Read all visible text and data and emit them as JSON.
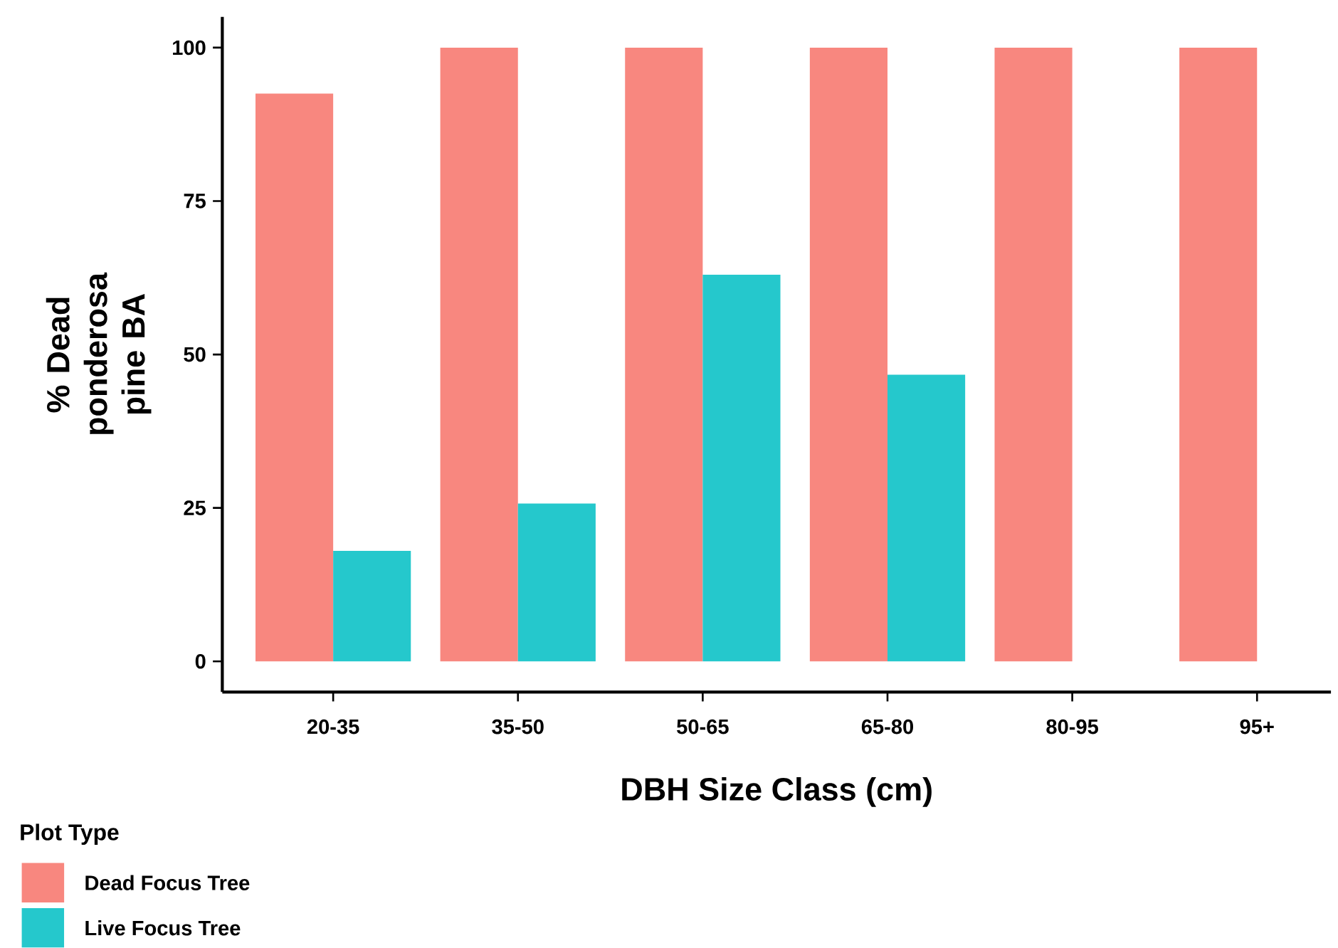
{
  "chart_data": {
    "type": "bar",
    "xlabel": "DBH Size Class (cm)",
    "ylabel": "% Dead ponderosa pine BA",
    "legend_title": "Plot Type",
    "categories": [
      "20-35",
      "35-50",
      "50-65",
      "65-80",
      "80-95",
      "95+"
    ],
    "series": [
      {
        "name": "Dead Focus Tree",
        "color": "#f8877f",
        "values": [
          92.5,
          100,
          100,
          100,
          100,
          100
        ]
      },
      {
        "name": "Live Focus Tree",
        "color": "#25c8cc",
        "values": [
          18,
          25.7,
          63,
          46.7,
          null,
          null
        ]
      }
    ],
    "ylim": [
      -5,
      105
    ],
    "yticks": [
      0,
      25,
      50,
      75,
      100
    ],
    "grid": false,
    "legend": "bottom left"
  }
}
